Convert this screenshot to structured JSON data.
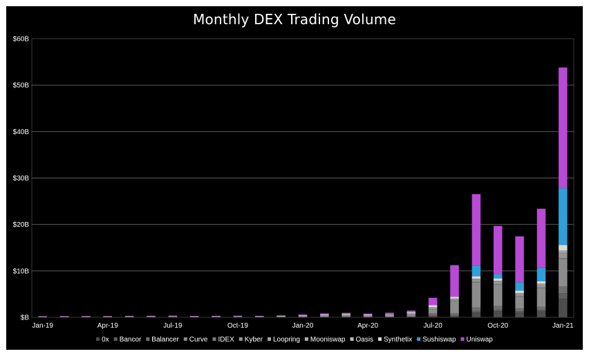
{
  "chart_data": {
    "type": "bar",
    "stacked": true,
    "title": "Monthly DEX Trading Volume",
    "xlabel": "",
    "ylabel": "",
    "ylim": [
      0,
      60
    ],
    "y_ticks": [
      0,
      10,
      20,
      30,
      40,
      50,
      60
    ],
    "y_tick_labels": [
      "$B",
      "$10B",
      "$20B",
      "$30B",
      "$40B",
      "$50B",
      "$60B"
    ],
    "categories": [
      "Jan-19",
      "Feb-19",
      "Mar-19",
      "Apr-19",
      "May-19",
      "Jun-19",
      "Jul-19",
      "Aug-19",
      "Sep-19",
      "Oct-19",
      "Nov-19",
      "Dec-19",
      "Jan-20",
      "Feb-20",
      "Mar-20",
      "Apr-20",
      "May-20",
      "Jun-20",
      "Jul-20",
      "Aug-20",
      "Sep-20",
      "Oct-20",
      "Nov-20",
      "Dec-20",
      "Jan-21"
    ],
    "x_tick_labels": [
      {
        "index": 0,
        "label": "Jan-19"
      },
      {
        "index": 3,
        "label": "Apr-19"
      },
      {
        "index": 6,
        "label": "Jul-19"
      },
      {
        "index": 9,
        "label": "Oct-19"
      },
      {
        "index": 12,
        "label": "Jan-20"
      },
      {
        "index": 15,
        "label": "Apr-20"
      },
      {
        "index": 18,
        "label": "Jul-20"
      },
      {
        "index": 21,
        "label": "Oct-20"
      },
      {
        "index": 24,
        "label": "Jan-21"
      }
    ],
    "grid": true,
    "legend_position": "bottom",
    "series": [
      {
        "name": "0x",
        "color": "#4d4d4d",
        "values": [
          0.03,
          0.03,
          0.03,
          0.03,
          0.04,
          0.05,
          0.05,
          0.04,
          0.04,
          0.04,
          0.04,
          0.05,
          0.05,
          0.07,
          0.07,
          0.05,
          0.06,
          0.12,
          0.3,
          0.3,
          1.0,
          1.3,
          1.0,
          1.3,
          4.0
        ]
      },
      {
        "name": "Bancor",
        "color": "#5f5f5f",
        "values": [
          0.04,
          0.04,
          0.04,
          0.04,
          0.05,
          0.05,
          0.05,
          0.04,
          0.04,
          0.04,
          0.03,
          0.04,
          0.04,
          0.05,
          0.05,
          0.04,
          0.04,
          0.06,
          0.15,
          0.15,
          0.35,
          0.35,
          0.3,
          0.3,
          1.2
        ]
      },
      {
        "name": "Balancer",
        "color": "#707070",
        "values": [
          0,
          0,
          0,
          0,
          0,
          0,
          0,
          0,
          0,
          0,
          0,
          0,
          0,
          0,
          0,
          0,
          0,
          0,
          0.4,
          0.4,
          0.8,
          0.8,
          0.6,
          0.7,
          1.5
        ]
      },
      {
        "name": "Curve",
        "color": "#8c8c8c",
        "values": [
          0,
          0,
          0,
          0,
          0,
          0,
          0,
          0,
          0,
          0,
          0.02,
          0.03,
          0.05,
          0.1,
          0.15,
          0.15,
          0.2,
          0.4,
          0.9,
          2.7,
          5.4,
          4.6,
          2.5,
          4.0,
          5.8
        ]
      },
      {
        "name": "IDEX",
        "color": "#7a7a7a",
        "values": [
          0.02,
          0.02,
          0.02,
          0.02,
          0.02,
          0.02,
          0.02,
          0.02,
          0.02,
          0.02,
          0.02,
          0.02,
          0.02,
          0.02,
          0.02,
          0.02,
          0.02,
          0.02,
          0.02,
          0.05,
          0.1,
          0.1,
          0.1,
          0.1,
          0.3
        ]
      },
      {
        "name": "Kyber",
        "color": "#969696",
        "values": [
          0.04,
          0.05,
          0.05,
          0.05,
          0.06,
          0.06,
          0.07,
          0.05,
          0.05,
          0.08,
          0.06,
          0.09,
          0.2,
          0.28,
          0.3,
          0.2,
          0.18,
          0.3,
          0.4,
          0.4,
          0.5,
          0.5,
          0.5,
          0.6,
          1.0
        ]
      },
      {
        "name": "Loopring",
        "color": "#a3a3a3",
        "values": [
          0,
          0,
          0,
          0,
          0,
          0,
          0,
          0,
          0,
          0,
          0,
          0,
          0,
          0,
          0,
          0,
          0,
          0,
          0,
          0,
          0.05,
          0.1,
          0.1,
          0.15,
          0.3
        ]
      },
      {
        "name": "Mooniswap",
        "color": "#b0b0b0",
        "values": [
          0,
          0,
          0,
          0,
          0,
          0,
          0,
          0,
          0,
          0,
          0,
          0,
          0,
          0,
          0,
          0,
          0,
          0,
          0,
          0,
          0.1,
          0.1,
          0.1,
          0.1,
          0.2
        ]
      },
      {
        "name": "Oasis",
        "color": "#bfbfbf",
        "values": [
          0.03,
          0.03,
          0.04,
          0.04,
          0.05,
          0.05,
          0.05,
          0.04,
          0.04,
          0.04,
          0.04,
          0.05,
          0.05,
          0.06,
          0.05,
          0.04,
          0.04,
          0.04,
          0.04,
          0.04,
          0.04,
          0.04,
          0.04,
          0.04,
          0.1
        ]
      },
      {
        "name": "Synthetix",
        "color": "#d9d9d9",
        "values": [
          0,
          0,
          0,
          0,
          0,
          0,
          0,
          0,
          0,
          0,
          0,
          0.02,
          0.03,
          0.05,
          0.1,
          0.1,
          0.1,
          0.2,
          0.4,
          0.4,
          0.5,
          0.5,
          0.5,
          0.5,
          1.2
        ]
      },
      {
        "name": "Sushiswap",
        "color": "#2e9fd9",
        "values": [
          0,
          0,
          0,
          0,
          0,
          0,
          0,
          0,
          0,
          0,
          0,
          0,
          0,
          0,
          0,
          0,
          0,
          0,
          0,
          0,
          2.3,
          0.9,
          1.8,
          2.8,
          12.2
        ]
      },
      {
        "name": "Uniswap",
        "color": "#b84ad6",
        "values": [
          0.04,
          0.05,
          0.07,
          0.07,
          0.09,
          0.1,
          0.12,
          0.1,
          0.13,
          0.13,
          0.1,
          0.12,
          0.16,
          0.2,
          0.22,
          0.2,
          0.35,
          0.3,
          1.6,
          6.8,
          15.4,
          10.4,
          9.9,
          12.8,
          26.0
        ]
      }
    ]
  }
}
